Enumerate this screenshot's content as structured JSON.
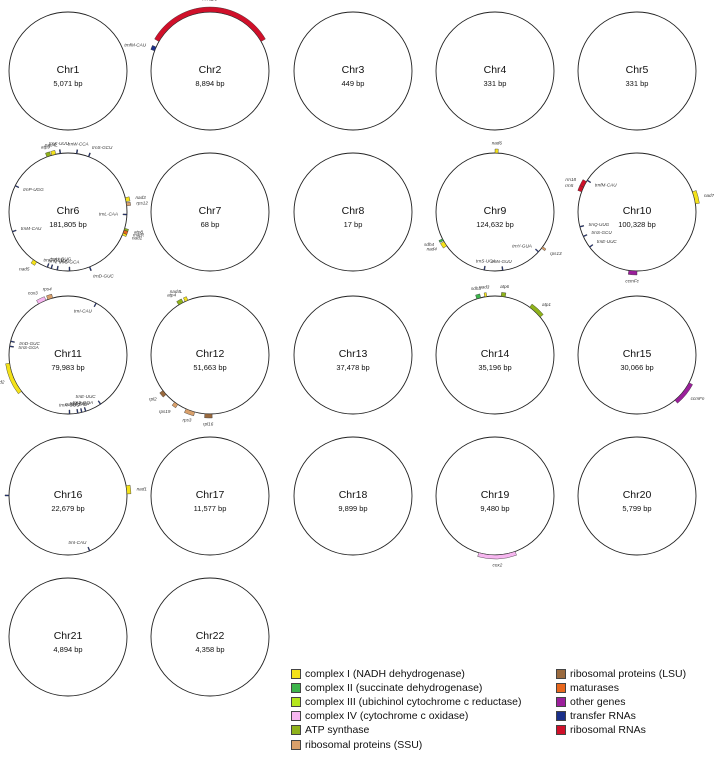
{
  "chromosomes": [
    {
      "name": "Chr1",
      "size": "5,071 bp",
      "genes": []
    },
    {
      "name": "Chr2",
      "size": "8,894 bp",
      "genes": [
        {
          "label": "rrn26",
          "category": "ribosomal_rna",
          "start_deg": 300,
          "end_deg": 60,
          "lane": "out"
        },
        {
          "label": "trnfM-CAU",
          "category": "trna",
          "start_deg": 290,
          "end_deg": 294,
          "lane": "out"
        }
      ]
    },
    {
      "name": "Chr3",
      "size": "449 bp",
      "genes": []
    },
    {
      "name": "Chr4",
      "size": "331 bp",
      "genes": []
    },
    {
      "name": "Chr5",
      "size": "331 bp",
      "genes": []
    },
    {
      "name": "Chr6",
      "size": "181,805 bp",
      "genes": [
        {
          "label": "atp9",
          "category": "atp_synthase",
          "start_deg": 339,
          "end_deg": 343,
          "lane": "out"
        },
        {
          "label": "nad4L",
          "category": "complex_i",
          "start_deg": 344,
          "end_deg": 348,
          "lane": "out"
        },
        {
          "label": "trnK-UUU",
          "category": "trna",
          "start_deg": 352,
          "end_deg": 353,
          "lane": "out"
        },
        {
          "label": "trnW-CCA",
          "category": "trna",
          "start_deg": 8,
          "end_deg": 9,
          "lane": "out"
        },
        {
          "label": "trnS-GCU",
          "category": "trna",
          "start_deg": 20,
          "end_deg": 21,
          "lane": "out"
        },
        {
          "label": "nad3",
          "category": "complex_i",
          "start_deg": 76,
          "end_deg": 80,
          "lane": "out"
        },
        {
          "label": "rps12",
          "category": "ribosomal_ssu",
          "start_deg": 81,
          "end_deg": 84,
          "lane": "out"
        },
        {
          "label": "trnL-CAA",
          "category": "trna",
          "start_deg": 92,
          "end_deg": 93,
          "lane": "in"
        },
        {
          "label": "atp8",
          "category": "atp_synthase",
          "start_deg": 106,
          "end_deg": 108,
          "lane": "out"
        },
        {
          "label": "matR",
          "category": "maturase",
          "start_deg": 108,
          "end_deg": 111,
          "lane": "out"
        },
        {
          "label": "nad1",
          "category": "complex_i",
          "start_deg": 111,
          "end_deg": 113,
          "lane": "out"
        },
        {
          "label": "trnD-GUC",
          "category": "trna",
          "start_deg": 158,
          "end_deg": 159,
          "lane": "out"
        },
        {
          "label": "trnC-GCA",
          "category": "trna",
          "start_deg": 178,
          "end_deg": 179,
          "lane": "in"
        },
        {
          "label": "trnH-GUG",
          "category": "trna",
          "start_deg": 200,
          "end_deg": 201,
          "lane": "in"
        },
        {
          "label": "trnG-GCC",
          "category": "trna",
          "start_deg": 196,
          "end_deg": 197,
          "lane": "in"
        },
        {
          "label": "trnQ-UUG",
          "category": "trna",
          "start_deg": 190,
          "end_deg": 191,
          "lane": "in"
        },
        {
          "label": "nad5",
          "category": "complex_i",
          "start_deg": 212,
          "end_deg": 216,
          "lane": "out"
        },
        {
          "label": "trnP-UGG",
          "category": "trna",
          "start_deg": 296,
          "end_deg": 297,
          "lane": "in"
        },
        {
          "label": "trnM-CAU",
          "category": "trna",
          "start_deg": 250,
          "end_deg": 251,
          "lane": "in"
        }
      ]
    },
    {
      "name": "Chr7",
      "size": "68 bp",
      "genes": []
    },
    {
      "name": "Chr8",
      "size": "17 bp",
      "genes": []
    },
    {
      "name": "Chr9",
      "size": "124,632 bp",
      "genes": [
        {
          "label": "nad6",
          "category": "complex_i",
          "start_deg": 0,
          "end_deg": 3,
          "lane": "out"
        },
        {
          "label": "rps13",
          "category": "ribosomal_ssu",
          "start_deg": 126,
          "end_deg": 128,
          "lane": "out"
        },
        {
          "label": "trnY-GUA",
          "category": "trna",
          "start_deg": 132,
          "end_deg": 133,
          "lane": "in"
        },
        {
          "label": "trnN-GUU",
          "category": "trna",
          "start_deg": 172,
          "end_deg": 173,
          "lane": "in"
        },
        {
          "label": "trnS-UGA",
          "category": "trna",
          "start_deg": 190,
          "end_deg": 191,
          "lane": "in"
        },
        {
          "label": "nad4",
          "category": "complex_i",
          "start_deg": 235,
          "end_deg": 240,
          "lane": "out"
        },
        {
          "label": "sdh4",
          "category": "complex_ii",
          "start_deg": 241,
          "end_deg": 243,
          "lane": "out"
        }
      ]
    },
    {
      "name": "Chr10",
      "size": "100,328 bp",
      "genes": [
        {
          "label": "nad7",
          "category": "complex_i",
          "start_deg": 70,
          "end_deg": 82,
          "lane": "out"
        },
        {
          "label": "ccmFc",
          "category": "other",
          "start_deg": 180,
          "end_deg": 188,
          "lane": "out"
        },
        {
          "label": "trnE-UUC",
          "category": "trna",
          "start_deg": 233,
          "end_deg": 234,
          "lane": "in"
        },
        {
          "label": "trnS-GCU",
          "category": "trna",
          "start_deg": 245,
          "end_deg": 246,
          "lane": "in"
        },
        {
          "label": "trnQ-UUG",
          "category": "trna",
          "start_deg": 255,
          "end_deg": 256,
          "lane": "in"
        },
        {
          "label": "rrn5",
          "category": "ribosomal_rna",
          "start_deg": 290,
          "end_deg": 295,
          "lane": "out"
        },
        {
          "label": "rrn18",
          "category": "ribosomal_rna",
          "start_deg": 295,
          "end_deg": 301,
          "lane": "out"
        },
        {
          "label": "trnfM-CAU",
          "category": "trna",
          "start_deg": 302,
          "end_deg": 303,
          "lane": "in"
        }
      ]
    },
    {
      "name": "Chr11",
      "size": "79,983 bp",
      "genes": [
        {
          "label": "trnI-CAU",
          "category": "trna",
          "start_deg": 28,
          "end_deg": 29,
          "lane": "in"
        },
        {
          "label": "trnE-UUC",
          "category": "trna",
          "start_deg": 146,
          "end_deg": 147,
          "lane": "in"
        },
        {
          "label": "trnS-GGA",
          "category": "trna",
          "start_deg": 162,
          "end_deg": 163,
          "lane": "in"
        },
        {
          "label": "trnT-GGU",
          "category": "trna",
          "start_deg": 166,
          "end_deg": 167,
          "lane": "in"
        },
        {
          "label": "trnfM-CAU",
          "category": "trna",
          "start_deg": 170,
          "end_deg": 171,
          "lane": "in"
        },
        {
          "label": "trnN-GUU",
          "category": "trna",
          "start_deg": 178,
          "end_deg": 179,
          "lane": "in"
        },
        {
          "label": "nad2",
          "category": "complex_i",
          "start_deg": 232,
          "end_deg": 262,
          "lane": "out"
        },
        {
          "label": "trnS-GGA",
          "category": "trna",
          "start_deg": 278,
          "end_deg": 279,
          "lane": "in"
        },
        {
          "label": "trnD-GUC",
          "category": "trna",
          "start_deg": 283,
          "end_deg": 284,
          "lane": "in"
        },
        {
          "label": "cox3",
          "category": "complex_iv",
          "start_deg": 330,
          "end_deg": 338,
          "lane": "out"
        },
        {
          "label": "rps4",
          "category": "ribosomal_ssu",
          "start_deg": 340,
          "end_deg": 345,
          "lane": "out"
        }
      ]
    },
    {
      "name": "Chr12",
      "size": "51,663 bp",
      "genes": [
        {
          "label": "atp4",
          "category": "atp_synthase",
          "start_deg": 328,
          "end_deg": 333,
          "lane": "out"
        },
        {
          "label": "nad4L",
          "category": "complex_i",
          "start_deg": 335,
          "end_deg": 338,
          "lane": "out"
        },
        {
          "label": "rpl2",
          "category": "ribosomal_lsu",
          "start_deg": 228,
          "end_deg": 233,
          "lane": "out"
        },
        {
          "label": "rps19",
          "category": "ribosomal_ssu",
          "start_deg": 213,
          "end_deg": 217,
          "lane": "out"
        },
        {
          "label": "rps3",
          "category": "ribosomal_ssu",
          "start_deg": 195,
          "end_deg": 204,
          "lane": "out"
        },
        {
          "label": "rpl16",
          "category": "ribosomal_lsu",
          "start_deg": 178,
          "end_deg": 185,
          "lane": "out"
        }
      ]
    },
    {
      "name": "Chr13",
      "size": "37,478 bp",
      "genes": []
    },
    {
      "name": "Chr14",
      "size": "35,196 bp",
      "genes": [
        {
          "label": "sdh3",
          "category": "complex_ii",
          "start_deg": 342,
          "end_deg": 346,
          "lane": "out"
        },
        {
          "label": "nad3",
          "category": "complex_i",
          "start_deg": 350,
          "end_deg": 352,
          "lane": "out"
        },
        {
          "label": "atp6",
          "category": "atp_synthase",
          "start_deg": 6,
          "end_deg": 10,
          "lane": "out"
        },
        {
          "label": "atp1",
          "category": "atp_synthase",
          "start_deg": 36,
          "end_deg": 50,
          "lane": "out"
        }
      ]
    },
    {
      "name": "Chr15",
      "size": "30,066 bp",
      "genes": [
        {
          "label": "ccmFn",
          "category": "other",
          "start_deg": 118,
          "end_deg": 140,
          "lane": "out"
        }
      ]
    },
    {
      "name": "Chr16",
      "size": "22,679 bp",
      "genes": [
        {
          "label": "nad1",
          "category": "complex_i",
          "start_deg": 80,
          "end_deg": 88,
          "lane": "out"
        },
        {
          "label": "trnI-CAU",
          "category": "trna",
          "start_deg": 158,
          "end_deg": 159,
          "lane": "in"
        },
        {
          "label": "rrnD",
          "category": "trna",
          "start_deg": 270,
          "end_deg": 271,
          "lane": "out"
        }
      ]
    },
    {
      "name": "Chr17",
      "size": "11,577 bp",
      "genes": []
    },
    {
      "name": "Chr18",
      "size": "9,899 bp",
      "genes": []
    },
    {
      "name": "Chr19",
      "size": "9,480 bp",
      "genes": [
        {
          "label": "cox2",
          "category": "complex_iv",
          "start_deg": 160,
          "end_deg": 196,
          "lane": "out"
        }
      ]
    },
    {
      "name": "Chr20",
      "size": "5,799 bp",
      "genes": []
    },
    {
      "name": "Chr21",
      "size": "4,894 bp",
      "genes": []
    },
    {
      "name": "Chr22",
      "size": "4,358 bp",
      "genes": []
    }
  ],
  "legend": {
    "left": [
      {
        "key": "complex_i",
        "label": "complex I (NADH dehydrogenase)"
      },
      {
        "key": "complex_ii",
        "label": "complex II (succinate dehydrogenase)"
      },
      {
        "key": "complex_iii",
        "label": "complex III (ubichinol cytochrome c reductase)"
      },
      {
        "key": "complex_iv",
        "label": "complex IV (cytochrome c oxidase)"
      },
      {
        "key": "atp_synthase",
        "label": "ATP synthase"
      },
      {
        "key": "ribosomal_ssu",
        "label": "ribosomal proteins (SSU)"
      }
    ],
    "right": [
      {
        "key": "ribosomal_lsu",
        "label": "ribosomal proteins (LSU)"
      },
      {
        "key": "maturase",
        "label": "maturases"
      },
      {
        "key": "other",
        "label": "other genes"
      },
      {
        "key": "trna",
        "label": "transfer RNAs"
      },
      {
        "key": "ribosomal_rna",
        "label": "ribosomal RNAs"
      }
    ]
  },
  "colors": {
    "complex_i": "#f4e21a",
    "complex_ii": "#3cb44b",
    "complex_iii": "#b5e61d",
    "complex_iv": "#f7b6f0",
    "atp_synthase": "#8fb21b",
    "ribosomal_ssu": "#d9a06b",
    "ribosomal_lsu": "#9a6a3e",
    "maturase": "#e8671c",
    "other": "#9b1f9b",
    "trna": "#1a2f8a",
    "ribosomal_rna": "#d0102a"
  }
}
